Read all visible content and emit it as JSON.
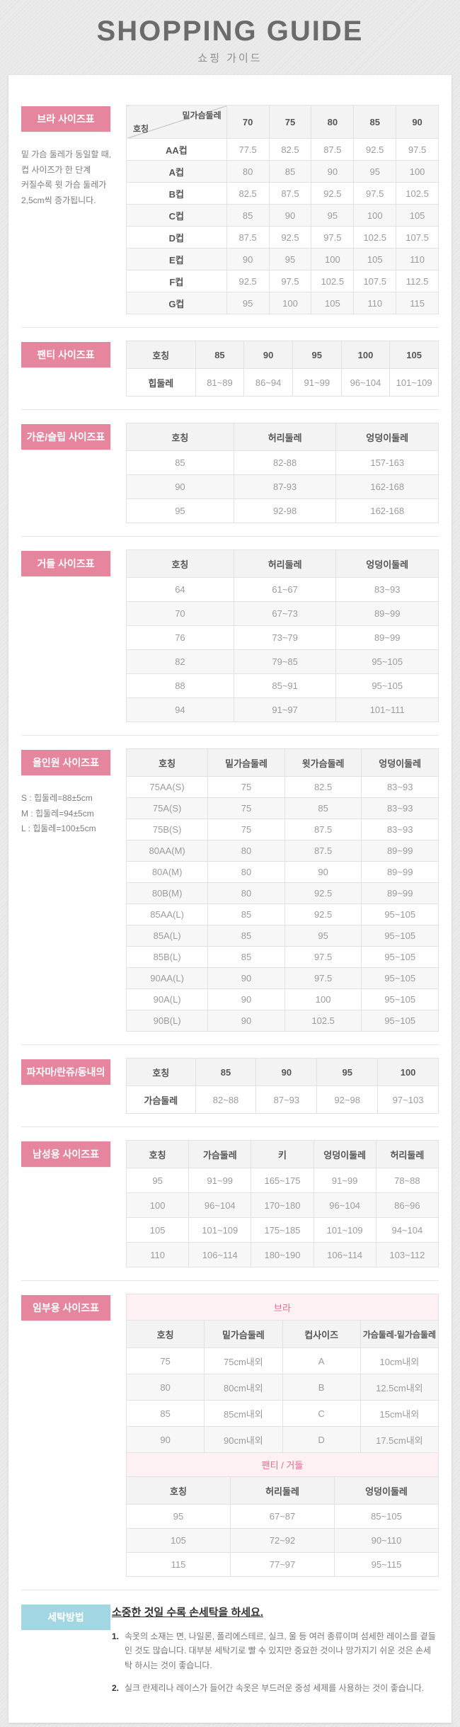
{
  "page": {
    "title": "SHOPPING GUIDE",
    "subtitle": "쇼핑 가이드"
  },
  "colors": {
    "accent_pink": "#e5869e",
    "banner_pink_bg": "#fdf1f4",
    "banner_pink_text": "#e0708a",
    "wash_blue": "#a3d6e3"
  },
  "sections": [
    {
      "id": "bra",
      "label": "브라 사이즈표",
      "note_lines": [
        "밑 가슴 둘레가 동일할 때,",
        "컵 사이즈가 한 단계",
        "커질수록 윗 가슴 둘레가",
        "2,5cm씩 증가됩니다."
      ],
      "table": {
        "diagonal_header": {
          "top": "밑가슴둘레",
          "bottom": "호칭"
        },
        "columns": [
          "70",
          "75",
          "80",
          "85",
          "90"
        ],
        "rows": [
          {
            "label": "AA컵",
            "values": [
              "77.5",
              "82.5",
              "87.5",
              "92.5",
              "97.5"
            ]
          },
          {
            "label": "A컵",
            "values": [
              "80",
              "85",
              "90",
              "95",
              "100"
            ]
          },
          {
            "label": "B컵",
            "values": [
              "82.5",
              "87.5",
              "92.5",
              "97.5",
              "102.5"
            ]
          },
          {
            "label": "C컵",
            "values": [
              "85",
              "90",
              "95",
              "100",
              "105"
            ]
          },
          {
            "label": "D컵",
            "values": [
              "87.5",
              "92.5",
              "97.5",
              "102.5",
              "107.5"
            ]
          },
          {
            "label": "E컵",
            "values": [
              "90",
              "95",
              "100",
              "105",
              "110"
            ]
          },
          {
            "label": "F컵",
            "values": [
              "92.5",
              "97.5",
              "102.5",
              "107.5",
              "112.5"
            ]
          },
          {
            "label": "G컵",
            "values": [
              "95",
              "100",
              "105",
              "110",
              "115"
            ]
          }
        ]
      }
    },
    {
      "id": "panty",
      "label": "팬티 사이즈표",
      "table": {
        "first_col_bold": true,
        "header": [
          "호칭",
          "85",
          "90",
          "95",
          "100",
          "105"
        ],
        "rows": [
          [
            "힙둘레",
            "81~89",
            "86~94",
            "91~99",
            "96~104",
            "101~109"
          ]
        ]
      }
    },
    {
      "id": "gown-slip",
      "label": "가운/슬립 사이즈표",
      "table": {
        "header": [
          "호칭",
          "허리둘레",
          "엉덩이둘레"
        ],
        "rows": [
          [
            "85",
            "82-88",
            "157-163"
          ],
          [
            "90",
            "87-93",
            "162-168"
          ],
          [
            "95",
            "92-98",
            "162-168"
          ]
        ]
      }
    },
    {
      "id": "girdle",
      "label": "거들 사이즈표",
      "table": {
        "header": [
          "호칭",
          "허리둘레",
          "엉덩이둘레"
        ],
        "rows": [
          [
            "64",
            "61~67",
            "83~93"
          ],
          [
            "70",
            "67~73",
            "89~99"
          ],
          [
            "76",
            "73~79",
            "89~99"
          ],
          [
            "82",
            "79~85",
            "95~105"
          ],
          [
            "88",
            "85~91",
            "95~105"
          ],
          [
            "94",
            "91~97",
            "101~111"
          ]
        ]
      }
    },
    {
      "id": "all-in-one",
      "label": "올인원 사이즈표",
      "note_lines": [
        "S : 힙둘레=88±5cm",
        "M : 힙둘레=94±5cm",
        "L : 힙둘레=100±5cm"
      ],
      "table": {
        "header": [
          "호칭",
          "밑가슴둘레",
          "윗가슴둘레",
          "엉덩이둘레"
        ],
        "rows": [
          [
            "75AA(S)",
            "75",
            "82.5",
            "83~93"
          ],
          [
            "75A(S)",
            "75",
            "85",
            "83~93"
          ],
          [
            "75B(S)",
            "75",
            "87.5",
            "83~93"
          ],
          [
            "80AA(M)",
            "80",
            "87.5",
            "89~99"
          ],
          [
            "80A(M)",
            "80",
            "90",
            "89~99"
          ],
          [
            "80B(M)",
            "80",
            "92.5",
            "89~99"
          ],
          [
            "85AA(L)",
            "85",
            "92.5",
            "95~105"
          ],
          [
            "85A(L)",
            "85",
            "95",
            "95~105"
          ],
          [
            "85B(L)",
            "85",
            "97.5",
            "95~105"
          ],
          [
            "90AA(L)",
            "90",
            "97.5",
            "95~105"
          ],
          [
            "90A(L)",
            "90",
            "100",
            "95~105"
          ],
          [
            "90B(L)",
            "90",
            "102.5",
            "95~105"
          ]
        ]
      }
    },
    {
      "id": "pajama",
      "label": "파자마/란쥬/동내의",
      "table": {
        "first_col_bold": true,
        "header": [
          "호칭",
          "85",
          "90",
          "95",
          "100"
        ],
        "rows": [
          [
            "가슴둘레",
            "82~88",
            "87~93",
            "92~98",
            "97~103"
          ]
        ]
      }
    },
    {
      "id": "mens",
      "label": "남성용 사이즈표",
      "table": {
        "header": [
          "호칭",
          "가슴둘레",
          "키",
          "엉덩이둘레",
          "허리둘레"
        ],
        "rows": [
          [
            "95",
            "91~99",
            "165~175",
            "91~99",
            "78~88"
          ],
          [
            "100",
            "96~104",
            "170~180",
            "96~104",
            "86~96"
          ],
          [
            "105",
            "101~109",
            "175~185",
            "101~109",
            "94~104"
          ],
          [
            "110",
            "106~114",
            "180~190",
            "106~114",
            "103~112"
          ]
        ]
      }
    },
    {
      "id": "maternity",
      "label": "임부용 사이즈표",
      "tables": [
        {
          "banner": "브라",
          "header": [
            "호칭",
            "밑가슴둘레",
            "컵사이즈",
            "가슴둘레-밑가슴둘레"
          ],
          "rows": [
            [
              "75",
              "75cm내외",
              "A",
              "10cm내외"
            ],
            [
              "80",
              "80cm내외",
              "B",
              "12.5cm내외"
            ],
            [
              "85",
              "85cm내외",
              "C",
              "15cm내외"
            ],
            [
              "90",
              "90cm내외",
              "D",
              "17.5cm내외"
            ]
          ]
        },
        {
          "banner": "팬티 / 거들",
          "header": [
            "호칭",
            "허리둘레",
            "엉덩이둘레"
          ],
          "rows": [
            [
              "95",
              "67~87",
              "85~105"
            ],
            [
              "105",
              "72~92",
              "90~110"
            ],
            [
              "115",
              "77~97",
              "95~115"
            ]
          ]
        }
      ]
    }
  ],
  "washing": {
    "label": "세탁방법",
    "title": "소중한 것일 수록 손세탁을 하세요.",
    "items": [
      {
        "no": "1.",
        "text": "속옷의 소재는 면, 나일론, 폴리에스테르, 실크, 울 등 여러 종류이며 섬세한 레이스를 곁들인 것도 많습니다. 대부분 세탁기로 빨 수 있지만 중요한 것이나 망가지기 쉬운 것은 손세탁 하시는 것이 좋습니다."
      },
      {
        "no": "2.",
        "text": "실크 란제리나 레이스가 들어간 속옷은 부드러운 중성 세제를 사용하는 것이 좋습니다."
      }
    ]
  }
}
